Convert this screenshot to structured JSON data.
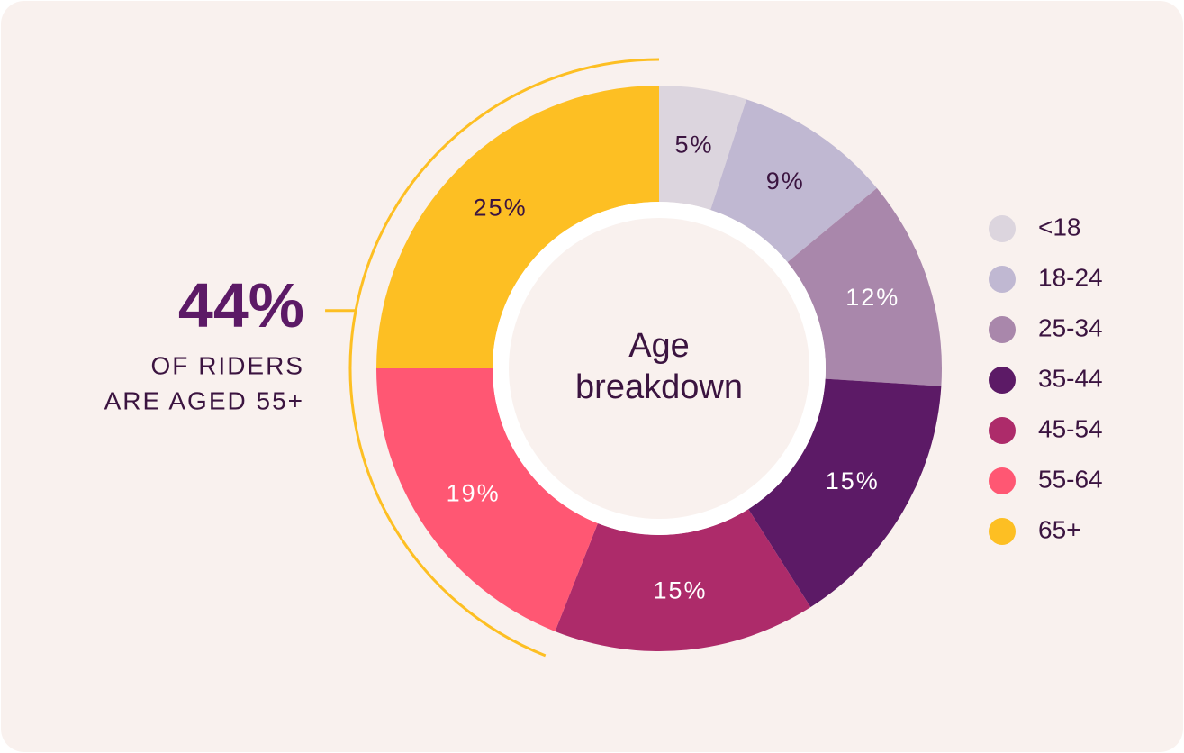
{
  "chart_data": {
    "type": "donut",
    "center_label": [
      "Age",
      "breakdown"
    ],
    "categories": [
      "<18",
      "18-24",
      "25-34",
      "35-44",
      "45-54",
      "55-64",
      "65+"
    ],
    "values": [
      5,
      9,
      12,
      15,
      15,
      19,
      25
    ],
    "value_labels": [
      "5%",
      "9%",
      "12%",
      "15%",
      "15%",
      "19%",
      "25%"
    ],
    "colors": [
      "#dcd5de",
      "#c0b8d2",
      "#a987ab",
      "#5c1a66",
      "#ad2b6a",
      "#ff5773",
      "#fdbf23"
    ],
    "legend": "right",
    "annotation": {
      "value": 44,
      "label": "44%",
      "text": [
        "OF RIDERS",
        "ARE AGED 55+"
      ],
      "color": "#fdbf23"
    }
  }
}
